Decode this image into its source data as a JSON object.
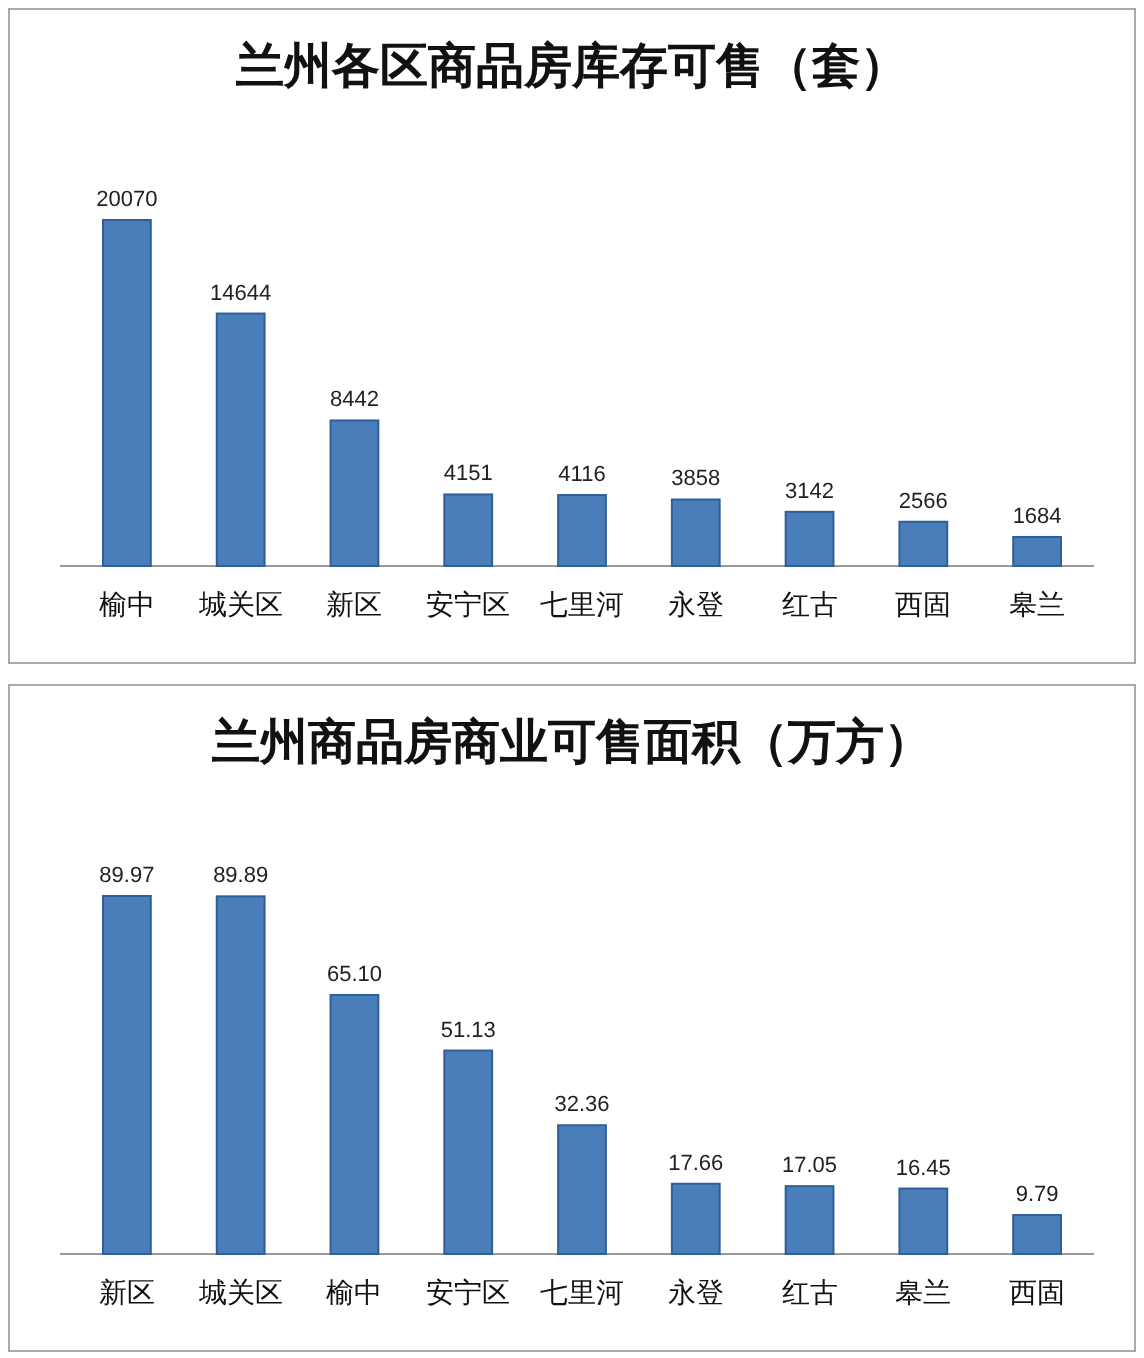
{
  "chart_data": [
    {
      "type": "bar",
      "title": "兰州各区商品房库存可售（套）",
      "categories": [
        "榆中",
        "城关区",
        "新区",
        "安宁区",
        "七里河",
        "永登",
        "红古",
        "西固",
        "皋兰"
      ],
      "values": [
        20070,
        14644,
        8442,
        4151,
        4116,
        3858,
        3142,
        2566,
        1684
      ],
      "color": "#4a7ebb",
      "data_labels": true
    },
    {
      "type": "bar",
      "title": "兰州商品房商业可售面积（万方）",
      "categories": [
        "新区",
        "城关区",
        "榆中",
        "安宁区",
        "七里河",
        "永登",
        "红古",
        "皋兰",
        "西固"
      ],
      "values": [
        89.97,
        89.89,
        65.1,
        51.13,
        32.36,
        17.66,
        17.05,
        16.45,
        9.79
      ],
      "color": "#4a7ebb",
      "value_labels": [
        "89.97",
        "89.89",
        "65.10",
        "51.13",
        "32.36",
        "17.66",
        "17.05",
        "16.45",
        "9.79"
      ]
    }
  ]
}
